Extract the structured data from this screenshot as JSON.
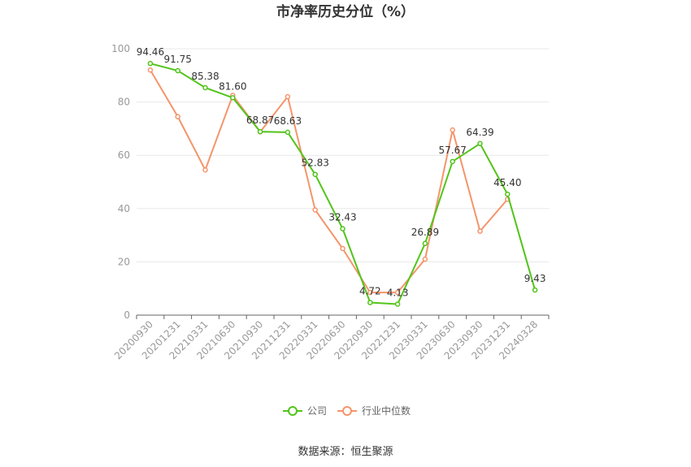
{
  "chart_data": {
    "type": "line",
    "title": "市净率历史分位（%）",
    "x": [
      "20200930",
      "20201231",
      "20210331",
      "20210630",
      "20210930",
      "20211231",
      "20220331",
      "20220630",
      "20220930",
      "20221231",
      "20230331",
      "20230630",
      "20230930",
      "20231231",
      "20240328"
    ],
    "ylim": [
      0,
      100
    ],
    "yticks": [
      0,
      20,
      40,
      60,
      80,
      100
    ],
    "grid": true,
    "legend_position": "bottom",
    "series": [
      {
        "name": "公司",
        "color": "#52c41a",
        "values": [
          94.46,
          91.75,
          85.38,
          81.6,
          68.87,
          68.63,
          52.83,
          32.43,
          4.72,
          4.13,
          26.89,
          57.67,
          64.39,
          45.4,
          9.43
        ],
        "labels": [
          "94.46",
          "91.75",
          "85.38",
          "81.60",
          "68.87",
          "68.63",
          "52.83",
          "32.43",
          "4.72",
          "4.13",
          "26.89",
          "57.67",
          "64.39",
          "45.40",
          "9.43"
        ]
      },
      {
        "name": "行业中位数",
        "color": "#f4956b",
        "values": [
          92.0,
          74.5,
          54.5,
          82.5,
          68.8,
          82.0,
          39.5,
          25.0,
          8.5,
          8.5,
          21.0,
          69.5,
          31.5,
          43.5,
          null
        ]
      }
    ],
    "source": "数据来源：恒生聚源"
  }
}
